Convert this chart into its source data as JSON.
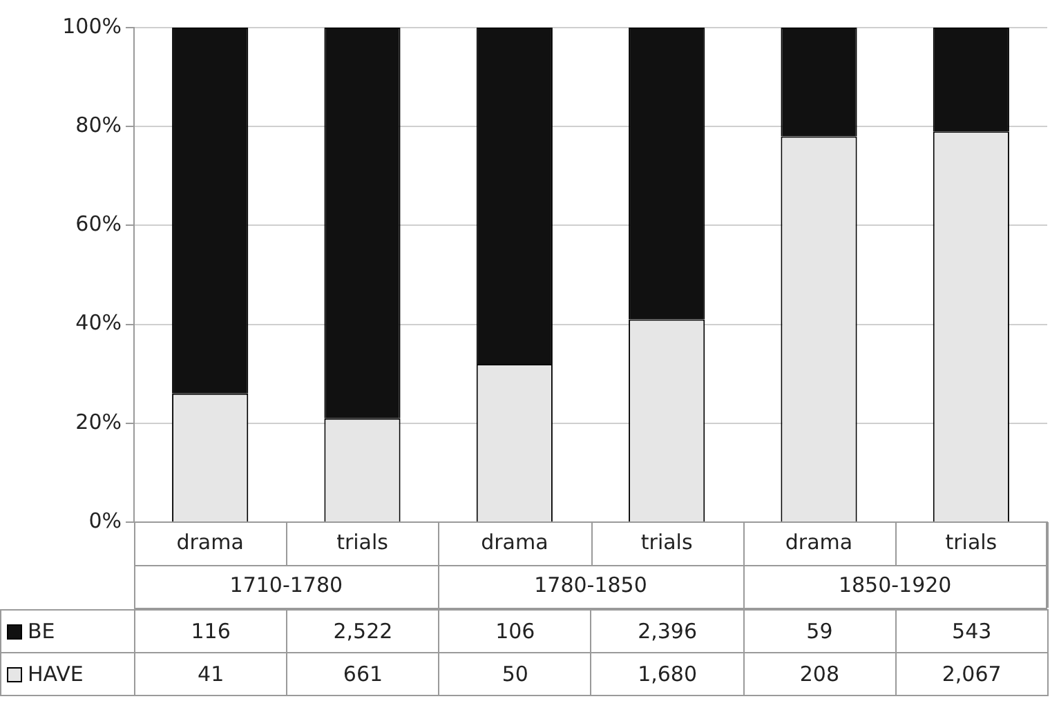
{
  "chart_data": [
    {
      "type": "bar",
      "stacked": true,
      "categories": [
        "drama",
        "trials",
        "drama",
        "trials",
        "drama",
        "trials"
      ],
      "series": [
        {
          "color": "#e6e6e6",
          "values": [
            26,
            21,
            32,
            41,
            78,
            79
          ]
        },
        {
          "color": "#111111",
          "values": [
            74,
            79,
            68,
            59,
            22,
            21
          ]
        }
      ],
      "ylim": [
        0,
        100
      ],
      "yticks": [
        {
          "value": 0,
          "label": "0%"
        },
        {
          "value": 20,
          "label": "20%"
        },
        {
          "value": 40,
          "label": "40%"
        },
        {
          "value": 60,
          "label": "60%"
        },
        {
          "value": 80,
          "label": "80%"
        },
        {
          "value": 100,
          "label": "100%"
        }
      ],
      "grid": "y",
      "annotations": [
        "1710-1780",
        "1780-1850",
        "1850-1920"
      ]
    },
    {
      "type": "heatmap",
      "categories": [
        null,
        null,
        null,
        null,
        null,
        null
      ],
      "y_categories": [
        "BE",
        "HAVE"
      ],
      "cells": [
        [
          116,
          2522,
          106,
          2396,
          59,
          543
        ],
        [
          41,
          661,
          50,
          1680,
          208,
          2067
        ]
      ],
      "cell_labels": [
        [
          "116",
          "2,522",
          "106",
          "2,396",
          "59",
          "543"
        ],
        [
          "41",
          "661",
          "50",
          "1,680",
          "208",
          "2,067"
        ]
      ]
    }
  ]
}
